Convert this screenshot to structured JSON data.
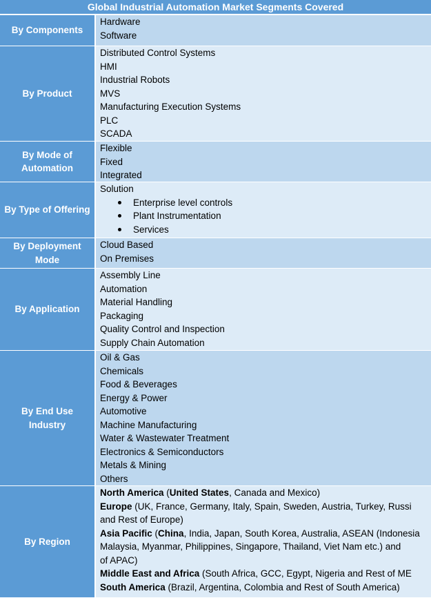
{
  "title": "Global Industrial Automation Market Segments Covered",
  "colors": {
    "header": "#5b9bd5",
    "row_dark": "#bdd7ee",
    "row_light": "#ddebf7"
  },
  "rows": [
    {
      "label": "By Components",
      "items": [
        {
          "text": "Hardware"
        },
        {
          "text": "Software"
        }
      ]
    },
    {
      "label": "By Product",
      "items": [
        {
          "text": "Distributed Control Systems"
        },
        {
          "text": "HMI"
        },
        {
          "text": "Industrial Robots"
        },
        {
          "text": "MVS"
        },
        {
          "text": "Manufacturing Execution Systems"
        },
        {
          "text": "PLC"
        },
        {
          "text": "SCADA"
        }
      ]
    },
    {
      "label": "By Mode of Automation",
      "items": [
        {
          "text": "Flexible"
        },
        {
          "text": "Fixed"
        },
        {
          "text": "Integrated"
        }
      ]
    },
    {
      "label": "By Type of Offering",
      "items": [
        {
          "text": "Solution"
        },
        {
          "text": "Enterprise level controls",
          "bullet": true
        },
        {
          "text": "Plant Instrumentation",
          "bullet": true
        },
        {
          "text": "Services",
          "bullet": true
        }
      ]
    },
    {
      "label": "By Deployment Mode",
      "items": [
        {
          "text": "Cloud Based"
        },
        {
          "text": "On Premises"
        }
      ]
    },
    {
      "label": "By Application",
      "items": [
        {
          "text": "Assembly Line"
        },
        {
          "text": "Automation"
        },
        {
          "text": "Material Handling"
        },
        {
          "text": "Packaging"
        },
        {
          "text": "Quality Control and Inspection"
        },
        {
          "text": "Supply Chain Automation"
        }
      ]
    },
    {
      "label": "By End Use Industry",
      "items": [
        {
          "text": "Oil & Gas"
        },
        {
          "text": "Chemicals"
        },
        {
          "text": "Food & Beverages"
        },
        {
          "text": "Energy & Power"
        },
        {
          "text": "Automotive"
        },
        {
          "text": "Machine Manufacturing"
        },
        {
          "text": "Water & Wastewater Treatment"
        },
        {
          "text": "Electronics & Semiconductors"
        },
        {
          "text": "Metals & Mining"
        },
        {
          "text": "Others"
        }
      ]
    },
    {
      "label": "By Region",
      "lines": [
        [
          {
            "t": "North America",
            "b": true
          },
          {
            "t": " ("
          },
          {
            "t": "United States",
            "b": true
          },
          {
            "t": ", Canada and Mexico)"
          }
        ],
        [
          {
            "t": "Europe",
            "b": true
          },
          {
            "t": " (UK, France, Germany, Italy, Spain, Sweden, Austria, Turkey, Russi"
          }
        ],
        [
          {
            "t": "and Rest of Europe)"
          }
        ],
        [
          {
            "t": "Asia Pacific",
            "b": true
          },
          {
            "t": " ("
          },
          {
            "t": "China",
            "b": true
          },
          {
            "t": ", India, Japan, South Korea, Australia, ASEAN (Indonesia"
          }
        ],
        [
          {
            "t": "Malaysia, Myanmar, Philippines, Singapore, Thailand, Viet Nam etc.) and"
          }
        ],
        [
          {
            "t": "of APAC)"
          }
        ],
        [
          {
            "t": "Middle East and Africa",
            "b": true
          },
          {
            "t": " (South Africa, GCC, Egypt, Nigeria and Rest of ME"
          }
        ],
        [
          {
            "t": "South America",
            "b": true
          },
          {
            "t": " (Brazil, Argentina, Colombia and Rest of South America)"
          }
        ]
      ]
    }
  ]
}
